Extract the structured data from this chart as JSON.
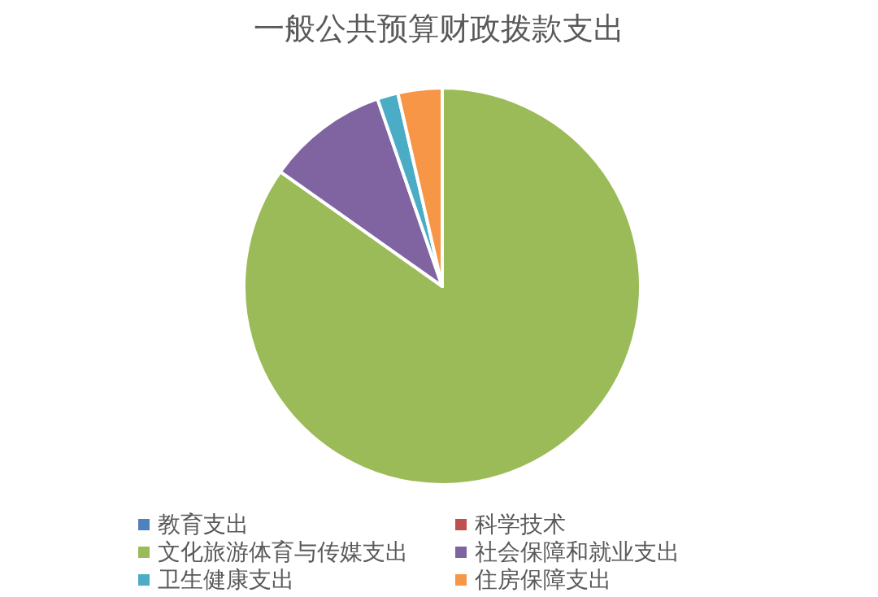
{
  "chart_data": {
    "type": "pie",
    "title": "一般公共预算财政拨款支出",
    "categories": [
      "教育支出",
      "科学技术",
      "文化旅游体育与传媒支出",
      "社会保障和就业支出",
      "卫生健康支出",
      "住房保障支出"
    ],
    "values": [
      0,
      0,
      84.8,
      9.9,
      1.7,
      3.6
    ],
    "colors": [
      "#4f81bd",
      "#c0504d",
      "#9bbb59",
      "#8064a2",
      "#4bacc6",
      "#f79646"
    ],
    "legend": "bottom"
  }
}
